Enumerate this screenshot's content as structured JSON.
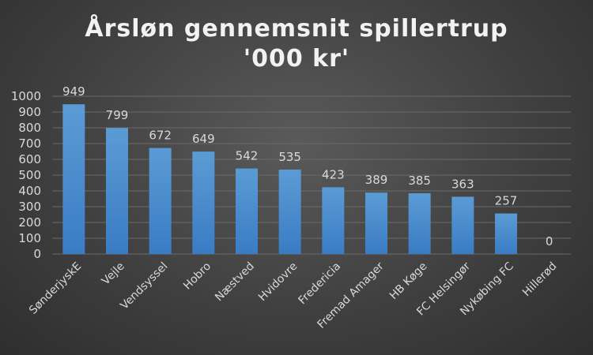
{
  "chart_data": {
    "type": "bar",
    "title": "Årsløn gennemsnit spillertrup '000 kr'",
    "categories": [
      "SønderjyskE",
      "Vejle",
      "Vendsyssel",
      "Hobro",
      "Næstved",
      "Hvidovre",
      "Fredericia",
      "Fremad Amager",
      "HB Køge",
      "FC Helsingør",
      "Nykøbing FC",
      "Hillerød"
    ],
    "values": [
      949,
      799,
      672,
      649,
      542,
      535,
      423,
      389,
      385,
      363,
      257,
      0
    ],
    "data_labels": [
      "949",
      "799",
      "672",
      "649",
      "542",
      "535",
      "423",
      "389",
      "385",
      "363",
      "257",
      "0"
    ],
    "ylim": [
      0,
      1000
    ],
    "yticks": [
      "0",
      "100",
      "200",
      "300",
      "400",
      "500",
      "600",
      "700",
      "800",
      "900",
      "1000"
    ],
    "grid": true,
    "legend": "none",
    "colors": {
      "bar_top": "#5b9bd5",
      "bar_bottom": "#3a7cc4",
      "grid": "#6a6a6a",
      "text": "#d9d9d9"
    }
  }
}
